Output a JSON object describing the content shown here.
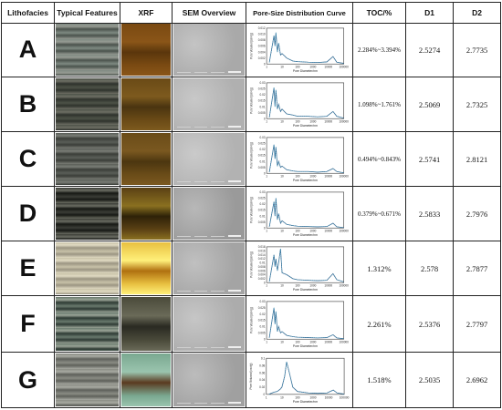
{
  "headers": {
    "lithofacies": "Lithofacies",
    "typical_features": "Typical Features",
    "xrf": "XRF",
    "sem": "SEM Overview",
    "psd": "Pore-Size Distribution  Curve",
    "toc": "TOC/%",
    "d1": "D1",
    "d2": "D2"
  },
  "chart_axis": {
    "xlabel": "Pore Diameter/nm",
    "ylabel": "Pore Volume/(cm³/g)",
    "x_ticks": [
      "1",
      "10",
      "100",
      "1000",
      "10000",
      "100000"
    ]
  },
  "rows": [
    {
      "letter": "A",
      "toc": "2.284%~3.394%",
      "d1": "2.5274",
      "d2": "2.7735",
      "colors": {
        "typical": [
          "#7f8a82",
          "#4a524c",
          "#969a92"
        ],
        "xrf": [
          "#7a4a12",
          "#5a360c",
          "#8a5518"
        ],
        "sem": [
          "#c4c4c4",
          "#a9a9a9"
        ]
      },
      "y_ticks": [
        "0.012",
        "0.010",
        "0.008",
        "0.006",
        "0.004",
        "0.002",
        "0"
      ],
      "y_max": 0.012,
      "curve": [
        [
          1.5,
          0.0005
        ],
        [
          3,
          0.0095
        ],
        [
          3.5,
          0.006
        ],
        [
          4,
          0.0105
        ],
        [
          5,
          0.004
        ],
        [
          6,
          0.007
        ],
        [
          8,
          0.003
        ],
        [
          10,
          0.0035
        ],
        [
          20,
          0.002
        ],
        [
          50,
          0.001
        ],
        [
          100,
          0.0008
        ],
        [
          500,
          0.0006
        ],
        [
          2000,
          0.0005
        ],
        [
          8000,
          0.0007
        ],
        [
          20000,
          0.0025
        ],
        [
          35000,
          0.0006
        ],
        [
          100000,
          0.0002
        ]
      ]
    },
    {
      "letter": "B",
      "toc": "1.098%~1.761%",
      "d1": "2.5069",
      "d2": "2.7325",
      "colors": {
        "typical": [
          "#4d5248",
          "#2e322c",
          "#6e6f64"
        ],
        "xrf": [
          "#6a4a16",
          "#4a3410",
          "#7d5a1e"
        ],
        "sem": [
          "#c8c8c8",
          "#b0b0b0"
        ]
      },
      "y_ticks": [
        "0.03",
        "0.025",
        "0.02",
        "0.015",
        "0.01",
        "0.005",
        "0"
      ],
      "y_max": 0.03,
      "curve": [
        [
          1.5,
          0.001
        ],
        [
          3,
          0.026
        ],
        [
          3.5,
          0.01
        ],
        [
          4,
          0.024
        ],
        [
          5,
          0.008
        ],
        [
          6,
          0.012
        ],
        [
          8,
          0.006
        ],
        [
          10,
          0.008
        ],
        [
          20,
          0.004
        ],
        [
          50,
          0.003
        ],
        [
          100,
          0.002
        ],
        [
          500,
          0.002
        ],
        [
          2000,
          0.0015
        ],
        [
          8000,
          0.002
        ],
        [
          20000,
          0.006
        ],
        [
          35000,
          0.002
        ],
        [
          100000,
          0.0005
        ]
      ]
    },
    {
      "letter": "C",
      "toc": "0.494%~0.843%",
      "d1": "2.5741",
      "d2": "2.8121",
      "colors": {
        "typical": [
          "#5a5e58",
          "#3a3d38",
          "#7a7d76"
        ],
        "xrf": [
          "#6a4c18",
          "#4c3610",
          "#7a5820"
        ],
        "sem": [
          "#cacaca",
          "#b2b2b2"
        ]
      },
      "y_ticks": [
        "0.03",
        "0.025",
        "0.02",
        "0.015",
        "0.01",
        "0.005",
        "0"
      ],
      "y_max": 0.03,
      "curve": [
        [
          1.5,
          0.001
        ],
        [
          3,
          0.024
        ],
        [
          3.5,
          0.012
        ],
        [
          4,
          0.022
        ],
        [
          5,
          0.006
        ],
        [
          6,
          0.01
        ],
        [
          8,
          0.005
        ],
        [
          10,
          0.006
        ],
        [
          20,
          0.003
        ],
        [
          50,
          0.002
        ],
        [
          100,
          0.0015
        ],
        [
          500,
          0.0015
        ],
        [
          2000,
          0.001
        ],
        [
          8000,
          0.0015
        ],
        [
          20000,
          0.004
        ],
        [
          35000,
          0.0015
        ],
        [
          100000,
          0.0004
        ]
      ]
    },
    {
      "letter": "D",
      "toc": "0.379%~0.671%",
      "d1": "2.5833",
      "d2": "2.7976",
      "colors": {
        "typical": [
          "#3a3c36",
          "#161814",
          "#6a6c62"
        ],
        "xrf": [
          "#5a4014",
          "#2e2208",
          "#8a7020"
        ],
        "sem": [
          "#b8b8b8",
          "#9a9a9a"
        ]
      },
      "y_ticks": [
        "0.03",
        "0.025",
        "0.02",
        "0.015",
        "0.01",
        "0.005",
        "0"
      ],
      "y_max": 0.03,
      "curve": [
        [
          1.5,
          0.001
        ],
        [
          3,
          0.022
        ],
        [
          3.5,
          0.01
        ],
        [
          4,
          0.025
        ],
        [
          5,
          0.007
        ],
        [
          6,
          0.012
        ],
        [
          8,
          0.004
        ],
        [
          10,
          0.006
        ],
        [
          20,
          0.003
        ],
        [
          50,
          0.002
        ],
        [
          100,
          0.0015
        ],
        [
          500,
          0.0012
        ],
        [
          2000,
          0.001
        ],
        [
          8000,
          0.0012
        ],
        [
          20000,
          0.004
        ],
        [
          35000,
          0.001
        ],
        [
          100000,
          0.0003
        ]
      ]
    },
    {
      "letter": "E",
      "toc": "1.312%",
      "d1": "2.578",
      "d2": "2.7877",
      "colors": {
        "typical": [
          "#c8c2a8",
          "#9a9482",
          "#e0dac2"
        ],
        "xrf": [
          "#e8c040",
          "#b07010",
          "#fff07a"
        ],
        "sem": [
          "#c0c0c0",
          "#a4a4a4"
        ]
      },
      "y_ticks": [
        "0.018",
        "0.016",
        "0.014",
        "0.012",
        "0.01",
        "0.008",
        "0.006",
        "0.004",
        "0.002",
        "0"
      ],
      "y_max": 0.018,
      "curve": [
        [
          1.5,
          0.0005
        ],
        [
          3,
          0.014
        ],
        [
          3.5,
          0.008
        ],
        [
          4,
          0.012
        ],
        [
          5,
          0.006
        ],
        [
          6,
          0.01
        ],
        [
          8,
          0.017
        ],
        [
          10,
          0.005
        ],
        [
          20,
          0.004
        ],
        [
          50,
          0.002
        ],
        [
          100,
          0.0015
        ],
        [
          500,
          0.0012
        ],
        [
          2000,
          0.001
        ],
        [
          8000,
          0.0012
        ],
        [
          20000,
          0.0045
        ],
        [
          35000,
          0.0015
        ],
        [
          100000,
          0.0004
        ]
      ]
    },
    {
      "letter": "F",
      "toc": "2.261%",
      "d1": "2.5376",
      "d2": "2.7797",
      "colors": {
        "typical": [
          "#6a7a6e",
          "#2e3a34",
          "#9aa496"
        ],
        "xrf": [
          "#4a4a3a",
          "#2a2a22",
          "#6a6a58"
        ],
        "sem": [
          "#c6c6c6",
          "#acacac"
        ]
      },
      "y_ticks": [
        "0.03",
        "0.025",
        "0.02",
        "0.015",
        "0.01",
        "0.005",
        "0"
      ],
      "y_max": 0.03,
      "curve": [
        [
          1.5,
          0.001
        ],
        [
          3,
          0.025
        ],
        [
          3.5,
          0.012
        ],
        [
          4,
          0.022
        ],
        [
          5,
          0.006
        ],
        [
          6,
          0.01
        ],
        [
          8,
          0.005
        ],
        [
          10,
          0.006
        ],
        [
          20,
          0.003
        ],
        [
          50,
          0.002
        ],
        [
          100,
          0.0015
        ],
        [
          500,
          0.0012
        ],
        [
          2000,
          0.001
        ],
        [
          8000,
          0.0012
        ],
        [
          20000,
          0.0035
        ],
        [
          35000,
          0.001
        ],
        [
          100000,
          0.0003
        ]
      ]
    },
    {
      "letter": "G",
      "toc": "1.518%",
      "d1": "2.5035",
      "d2": "2.6962",
      "colors": {
        "typical": [
          "#8a8c84",
          "#5e605a",
          "#a8aaa2"
        ],
        "xrf": [
          "#7aa890",
          "#5a3a20",
          "#9ac4ae"
        ],
        "sem": [
          "#bcbcbc",
          "#a0a0a0"
        ]
      },
      "y_ticks": [
        "0.1",
        "0.08",
        "0.06",
        "0.04",
        "0.02",
        "0"
      ],
      "y_max": 0.1,
      "curve": [
        [
          1.5,
          0.0005
        ],
        [
          3,
          0.006
        ],
        [
          5,
          0.008
        ],
        [
          8,
          0.015
        ],
        [
          10,
          0.02
        ],
        [
          15,
          0.05
        ],
        [
          20,
          0.09
        ],
        [
          30,
          0.06
        ],
        [
          50,
          0.02
        ],
        [
          100,
          0.008
        ],
        [
          500,
          0.004
        ],
        [
          2000,
          0.003
        ],
        [
          8000,
          0.004
        ],
        [
          20000,
          0.012
        ],
        [
          35000,
          0.004
        ],
        [
          100000,
          0.001
        ]
      ]
    }
  ]
}
